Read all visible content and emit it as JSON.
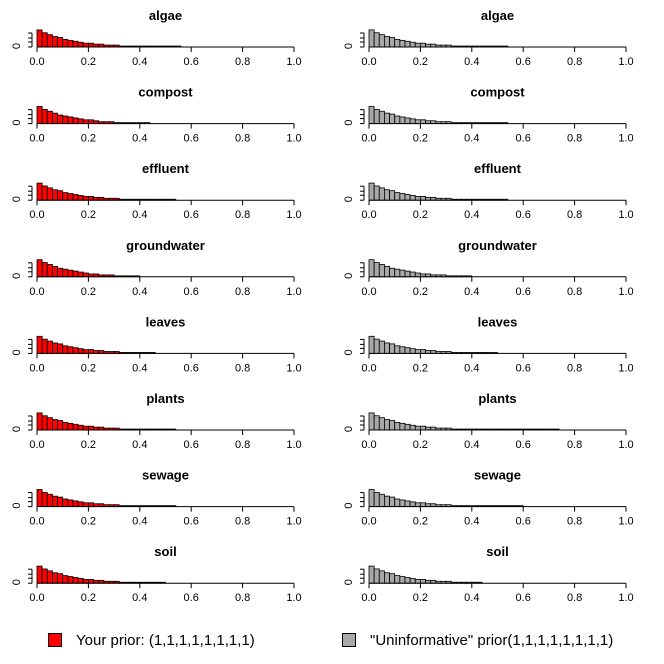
{
  "legend": {
    "left_label": "Your prior: (1,1,1,1,1,1,1,1)",
    "right_label": "\"Uninformative\" prior(1,1,1,1,1,1,1,1)",
    "left_color": "#ff0000",
    "right_color": "#a8a8a8"
  },
  "chart_data": {
    "type": "bar",
    "xlim": [
      0,
      1
    ],
    "x_ticks": [
      "0.0",
      "0.2",
      "0.4",
      "0.6",
      "0.8",
      "1.0"
    ],
    "y_tick_label": "0",
    "bin_width": 0.02,
    "panels_left": [
      {
        "title": "algae",
        "values": [
          18,
          15,
          13,
          11,
          10,
          8,
          7,
          6,
          5,
          4,
          4,
          3,
          3,
          2,
          2,
          2,
          1,
          1,
          1,
          1,
          1,
          1,
          1,
          1,
          1,
          1,
          1,
          1
        ]
      },
      {
        "title": "compost",
        "values": [
          18,
          15,
          13,
          11,
          9,
          8,
          7,
          6,
          5,
          4,
          4,
          3,
          2,
          2,
          2,
          1,
          1,
          1,
          1,
          1,
          1,
          1
        ]
      },
      {
        "title": "effluent",
        "values": [
          18,
          15,
          13,
          11,
          10,
          8,
          7,
          6,
          5,
          4,
          4,
          3,
          3,
          2,
          2,
          2,
          1,
          1,
          1,
          1,
          1,
          1,
          1,
          1,
          1,
          1,
          1
        ]
      },
      {
        "title": "groundwater",
        "values": [
          18,
          15,
          13,
          11,
          9,
          8,
          7,
          6,
          5,
          4,
          3,
          3,
          2,
          2,
          2,
          1,
          1,
          1,
          1,
          1
        ]
      },
      {
        "title": "leaves",
        "values": [
          18,
          15,
          13,
          11,
          10,
          8,
          7,
          6,
          5,
          4,
          4,
          3,
          3,
          2,
          2,
          2,
          1,
          1,
          1,
          1,
          1,
          1,
          1
        ]
      },
      {
        "title": "plants",
        "values": [
          18,
          15,
          13,
          11,
          10,
          8,
          7,
          6,
          5,
          4,
          4,
          3,
          3,
          2,
          2,
          2,
          1,
          1,
          1,
          1,
          1,
          1,
          1,
          1,
          1,
          1,
          1
        ]
      },
      {
        "title": "sewage",
        "values": [
          18,
          15,
          13,
          11,
          10,
          8,
          7,
          6,
          5,
          4,
          4,
          3,
          3,
          2,
          2,
          2,
          1,
          1,
          1,
          1,
          1,
          1,
          1,
          1,
          1,
          1,
          1
        ]
      },
      {
        "title": "soil",
        "values": [
          18,
          15,
          13,
          11,
          10,
          8,
          7,
          6,
          5,
          4,
          4,
          3,
          3,
          2,
          2,
          2,
          1,
          1,
          1,
          1,
          1,
          1,
          1,
          1,
          1
        ]
      }
    ],
    "panels_right": [
      {
        "title": "algae",
        "values": [
          18,
          15,
          13,
          11,
          10,
          8,
          7,
          6,
          5,
          4,
          4,
          3,
          3,
          2,
          2,
          2,
          1,
          1,
          1,
          1,
          1,
          1,
          1,
          1,
          1,
          1,
          1
        ]
      },
      {
        "title": "compost",
        "values": [
          18,
          15,
          13,
          11,
          10,
          8,
          7,
          6,
          5,
          4,
          4,
          3,
          3,
          2,
          2,
          2,
          1,
          1,
          1,
          1,
          1,
          1,
          1,
          1,
          1,
          1,
          1
        ]
      },
      {
        "title": "effluent",
        "values": [
          18,
          15,
          13,
          11,
          10,
          8,
          7,
          6,
          5,
          4,
          4,
          3,
          3,
          2,
          2,
          2,
          1,
          1,
          1,
          1,
          1,
          1,
          1,
          1,
          1,
          1,
          1
        ]
      },
      {
        "title": "groundwater",
        "values": [
          18,
          15,
          13,
          11,
          9,
          8,
          7,
          6,
          5,
          4,
          3,
          3,
          2,
          2,
          2,
          1,
          1,
          1,
          1,
          1
        ]
      },
      {
        "title": "leaves",
        "values": [
          18,
          15,
          13,
          11,
          10,
          8,
          7,
          6,
          5,
          4,
          4,
          3,
          3,
          2,
          2,
          2,
          1,
          1,
          1,
          1,
          1,
          1,
          1,
          1,
          1
        ]
      },
      {
        "title": "plants",
        "values": [
          18,
          15,
          13,
          11,
          10,
          8,
          7,
          6,
          5,
          4,
          4,
          3,
          3,
          2,
          2,
          2,
          1,
          1,
          1,
          1,
          1,
          1,
          1,
          1,
          1,
          1,
          1,
          1,
          1,
          1,
          1,
          1,
          1,
          1,
          1,
          1,
          1
        ]
      },
      {
        "title": "sewage",
        "values": [
          18,
          15,
          13,
          11,
          10,
          8,
          7,
          6,
          5,
          4,
          4,
          3,
          3,
          2,
          2,
          2,
          1,
          1,
          1,
          1,
          1,
          1,
          1,
          1,
          1,
          1,
          1,
          1,
          1,
          1
        ]
      },
      {
        "title": "soil",
        "values": [
          18,
          15,
          13,
          11,
          10,
          8,
          7,
          6,
          5,
          4,
          4,
          3,
          3,
          2,
          2,
          2,
          1,
          1,
          1,
          1,
          1,
          1
        ]
      }
    ]
  }
}
